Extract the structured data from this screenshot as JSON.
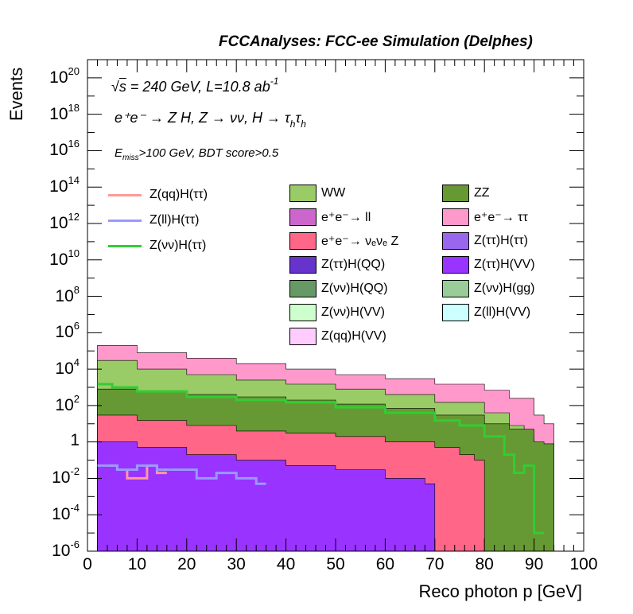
{
  "header": "FCCAnalyses: FCC-ee Simulation (Delphes)",
  "annotations": {
    "sqrts": "s",
    "energy": " = 240 GeV, L=10.8 ab",
    "lumi_exp": "-1",
    "process": "e⁺e⁻ → Z H, Z  → νν, H → τ",
    "tau_sub1": "h",
    "tau2": "τ",
    "tau_sub2": "h",
    "cut_e": "E",
    "cut_sub": "miss",
    "cut_text": ">100 GeV, BDT score>0.5"
  },
  "colors": {
    "WW": "#99cc66",
    "ZZ": "#669933",
    "ee_ll": "#cc66cc",
    "ee_tautau": "#ff99cc",
    "ee_nunuZ": "#ff6688",
    "tautauHtautau": "#9966ee",
    "tautauHQQ": "#6633cc",
    "tautauHVV": "#9933ff",
    "nunuHQQ": "#669966",
    "nunuHgg": "#99cc99",
    "nunuHVV": "#ccffcc",
    "llHVV": "#ccffff",
    "qqHVV": "#ffccff",
    "sig_qq": "#ff9999",
    "sig_ll": "#9999ff",
    "sig_nunu": "#33cc33"
  },
  "chart_data": {
    "type": "area",
    "title": "FCCAnalyses: FCC-ee Simulation (Delphes)",
    "xlabel": "Reco photon p [GeV]",
    "ylabel": "Events",
    "xlim": [
      0,
      100
    ],
    "ylim": [
      1e-06,
      1e+21
    ],
    "yscale": "log",
    "x_ticks": [
      "0",
      "10",
      "20",
      "30",
      "40",
      "50",
      "60",
      "70",
      "80",
      "90",
      "100"
    ],
    "y_ticks": [
      {
        "base": "10",
        "exp": "20",
        "value": 1e+20
      },
      {
        "base": "10",
        "exp": "18",
        "value": 1e+18
      },
      {
        "base": "10",
        "exp": "16",
        "value": 1e+16
      },
      {
        "base": "10",
        "exp": "14",
        "value": 100000000000000.0
      },
      {
        "base": "10",
        "exp": "12",
        "value": 1000000000000.0
      },
      {
        "base": "10",
        "exp": "10",
        "value": 10000000000.0
      },
      {
        "base": "10",
        "exp": "8",
        "value": 100000000.0
      },
      {
        "base": "10",
        "exp": "6",
        "value": 1000000.0
      },
      {
        "base": "10",
        "exp": "4",
        "value": 10000.0
      },
      {
        "base": "10",
        "exp": "2",
        "value": 100.0
      },
      {
        "base": "1",
        "exp": "",
        "value": 1
      },
      {
        "base": "10",
        "exp": "-2",
        "value": 0.01
      },
      {
        "base": "10",
        "exp": "-4",
        "value": 0.0001
      },
      {
        "base": "10",
        "exp": "-6",
        "value": 1e-06
      }
    ],
    "stack_totals": [
      {
        "name": "e⁺e⁻→ ττ",
        "key": "ee_tautau",
        "points": [
          [
            2,
            200000
          ],
          [
            10,
            80000
          ],
          [
            20,
            40000
          ],
          [
            30,
            20000
          ],
          [
            40,
            10000
          ],
          [
            50,
            5000
          ],
          [
            60,
            3000
          ],
          [
            70,
            1500
          ],
          [
            80,
            700
          ],
          [
            85,
            250
          ],
          [
            90,
            30
          ],
          [
            92,
            10
          ]
        ]
      },
      {
        "name": "WW",
        "key": "WW",
        "points": [
          [
            2,
            30000
          ],
          [
            10,
            10000
          ],
          [
            20,
            5000
          ],
          [
            30,
            2500
          ],
          [
            40,
            1500
          ],
          [
            50,
            800
          ],
          [
            60,
            400
          ],
          [
            70,
            150
          ],
          [
            80,
            40
          ],
          [
            85,
            8
          ],
          [
            88,
            2
          ],
          [
            90,
            0.5
          ]
        ]
      },
      {
        "name": "ZZ",
        "key": "ZZ",
        "points": [
          [
            2,
            800
          ],
          [
            10,
            600
          ],
          [
            20,
            400
          ],
          [
            30,
            300
          ],
          [
            40,
            200
          ],
          [
            50,
            120
          ],
          [
            60,
            70
          ],
          [
            70,
            30
          ],
          [
            80,
            10
          ],
          [
            85,
            5
          ],
          [
            90,
            1
          ],
          [
            92,
            0.8
          ]
        ]
      },
      {
        "name": "e⁺e⁻→ νₑνₑ Z",
        "key": "ee_nunuZ",
        "points": [
          [
            2,
            30
          ],
          [
            10,
            15
          ],
          [
            20,
            8
          ],
          [
            30,
            4
          ],
          [
            40,
            3
          ],
          [
            50,
            2
          ],
          [
            60,
            1
          ],
          [
            70,
            0.5
          ],
          [
            75,
            0.2
          ],
          [
            78,
            0.1
          ]
        ]
      },
      {
        "name": "Z(ττ)H(VV)",
        "key": "tautauHVV",
        "points": [
          [
            2,
            1
          ],
          [
            10,
            0.5
          ],
          [
            20,
            0.2
          ],
          [
            30,
            0.1
          ],
          [
            40,
            0.05
          ],
          [
            50,
            0.03
          ],
          [
            60,
            0.01
          ],
          [
            68,
            0.005
          ]
        ]
      }
    ],
    "signals": [
      {
        "name": "Z(qq)H(ττ)",
        "key": "sig_qq",
        "points": [
          [
            4,
            0.05
          ],
          [
            6,
            0.03
          ],
          [
            8,
            0.01
          ],
          [
            12,
            0.05
          ],
          [
            14,
            0.02
          ]
        ]
      },
      {
        "name": "Z(ll)H(ττ)",
        "key": "sig_ll",
        "points": [
          [
            2,
            0.05
          ],
          [
            6,
            0.03
          ],
          [
            10,
            0.05
          ],
          [
            14,
            0.03
          ],
          [
            22,
            0.01
          ],
          [
            26,
            0.02
          ],
          [
            30,
            0.01
          ],
          [
            34,
            0.005
          ]
        ]
      },
      {
        "name": "Z(νν)H(ττ)",
        "key": "sig_nunu",
        "points": [
          [
            2,
            1500
          ],
          [
            5,
            1000
          ],
          [
            10,
            600
          ],
          [
            20,
            300
          ],
          [
            30,
            200
          ],
          [
            40,
            150
          ],
          [
            50,
            80
          ],
          [
            60,
            40
          ],
          [
            70,
            15
          ],
          [
            75,
            8
          ],
          [
            80,
            2
          ],
          [
            84,
            0.2
          ],
          [
            86,
            0.02
          ],
          [
            88,
            0.05
          ],
          [
            90,
            1e-05
          ]
        ]
      }
    ]
  },
  "legend": {
    "signals": [
      {
        "label": "Z(qq)H(ττ)",
        "key": "sig_qq"
      },
      {
        "label": "Z(ll)H(ττ)",
        "key": "sig_ll"
      },
      {
        "label": "Z(νν)H(ττ)",
        "key": "sig_nunu"
      }
    ],
    "backgrounds": [
      {
        "label": "WW",
        "key": "WW"
      },
      {
        "label": "ZZ",
        "key": "ZZ"
      },
      {
        "label": "e⁺e⁻→ ll",
        "key": "ee_ll"
      },
      {
        "label": "e⁺e⁻→ ττ",
        "key": "ee_tautau"
      },
      {
        "label": "e⁺e⁻→ νₑνₑ Z",
        "key": "ee_nunuZ"
      },
      {
        "label": "Z(ττ)H(ττ)",
        "key": "tautauHtautau"
      },
      {
        "label": "Z(ττ)H(QQ)",
        "key": "tautauHQQ"
      },
      {
        "label": "Z(ττ)H(VV)",
        "key": "tautauHVV"
      },
      {
        "label": "Z(νν)H(QQ)",
        "key": "nunuHQQ"
      },
      {
        "label": "Z(νν)H(gg)",
        "key": "nunuHgg"
      },
      {
        "label": "Z(νν)H(VV)",
        "key": "nunuHVV"
      },
      {
        "label": "Z(ll)H(VV)",
        "key": "llHVV"
      },
      {
        "label": "Z(qq)H(VV)",
        "key": "qqHVV"
      }
    ]
  }
}
